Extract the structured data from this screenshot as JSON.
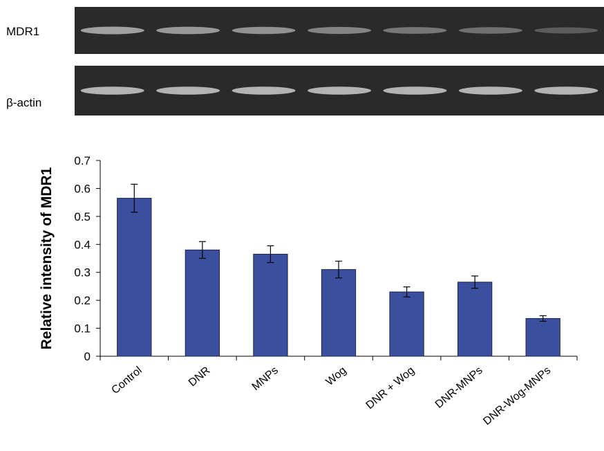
{
  "blot": {
    "lanes": 7,
    "rows": [
      {
        "label": "MDR1",
        "band_intensity": [
          0.75,
          0.7,
          0.65,
          0.55,
          0.45,
          0.4,
          0.25
        ]
      },
      {
        "label": "β-actin",
        "band_intensity": [
          0.9,
          0.9,
          0.9,
          0.9,
          0.9,
          0.9,
          0.9
        ]
      }
    ]
  },
  "chart_data": {
    "type": "bar",
    "categories": [
      "Control",
      "DNR",
      "MNPs",
      "Wog",
      "DNR + Wog",
      "DNR-MNPs",
      "DNR-Wog-MNPs"
    ],
    "series": [
      {
        "values": [
          0.565,
          0.38,
          0.365,
          0.31,
          0.23,
          0.265,
          0.135
        ],
        "errors": [
          0.05,
          0.03,
          0.03,
          0.03,
          0.018,
          0.022,
          0.01
        ]
      }
    ],
    "ylabel": "Relative intensity of MDR1",
    "xlabel": "",
    "ylim": [
      0,
      0.7
    ],
    "yticks": [
      0,
      0.1,
      0.2,
      0.3,
      0.4,
      0.5,
      0.6,
      0.7
    ],
    "ytick_labels": [
      "0",
      "0.1",
      "0.2",
      "0.3",
      "0.4",
      "0.5",
      "0.6",
      "0.7"
    ],
    "grid": false,
    "bar_color": "#3a4f9e",
    "bar_edge": "#1c2449"
  }
}
